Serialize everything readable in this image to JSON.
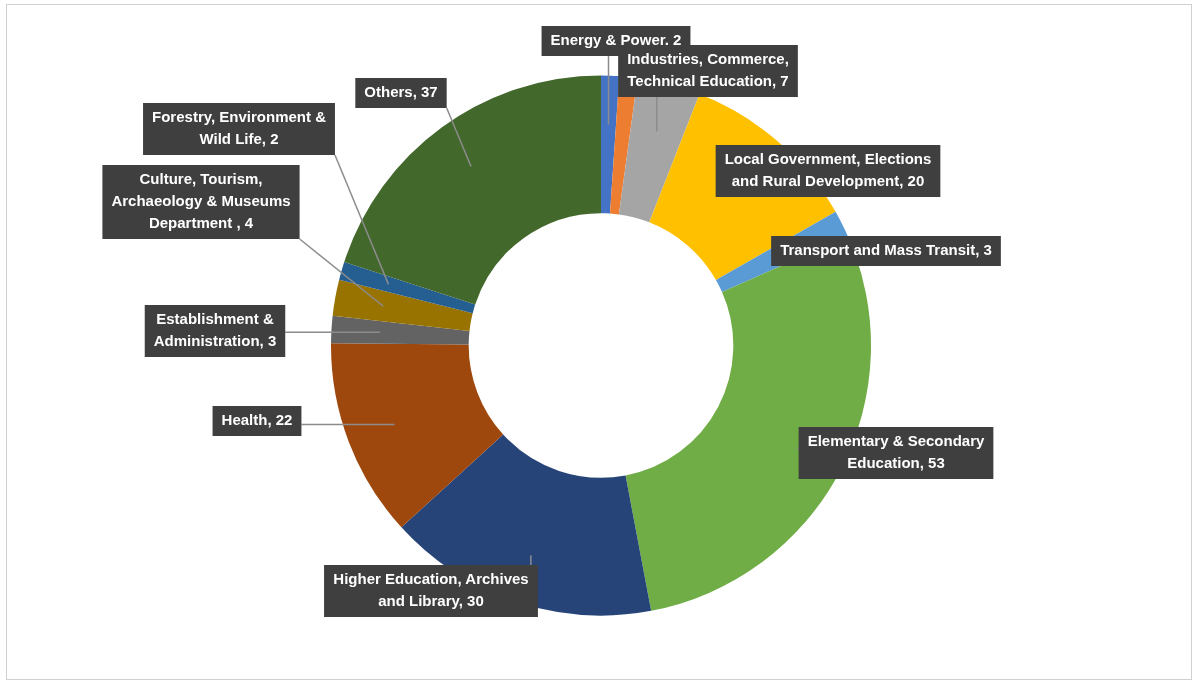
{
  "chart_data": {
    "type": "donut",
    "categories": [
      "Energy & Power, 2",
      null,
      "Industries, Commerce, Technical Education, 7",
      "Local Government, Elections and Rural Development, 20",
      "Transport and Mass Transit, 3",
      "Elementary & Secondary Education, 53",
      "Higher Education, Archives and Library, 30",
      "Health, 22",
      "Establishment & Administration, 3",
      "Culture, Tourism, Archaeology & Museums Department , 4",
      "Forestry, Environment & Wild Life, 2",
      "Others, 37"
    ],
    "values": [
      2,
      2,
      7,
      20,
      3,
      53,
      30,
      22,
      3,
      4,
      2,
      37
    ],
    "colors": [
      "#4472c4",
      "#ed7d31",
      "#a5a5a5",
      "#ffc000",
      "#5b9bd5",
      "#70ad47",
      "#264478",
      "#9e480e",
      "#636363",
      "#997300",
      "#255e91",
      "#43682b"
    ]
  }
}
